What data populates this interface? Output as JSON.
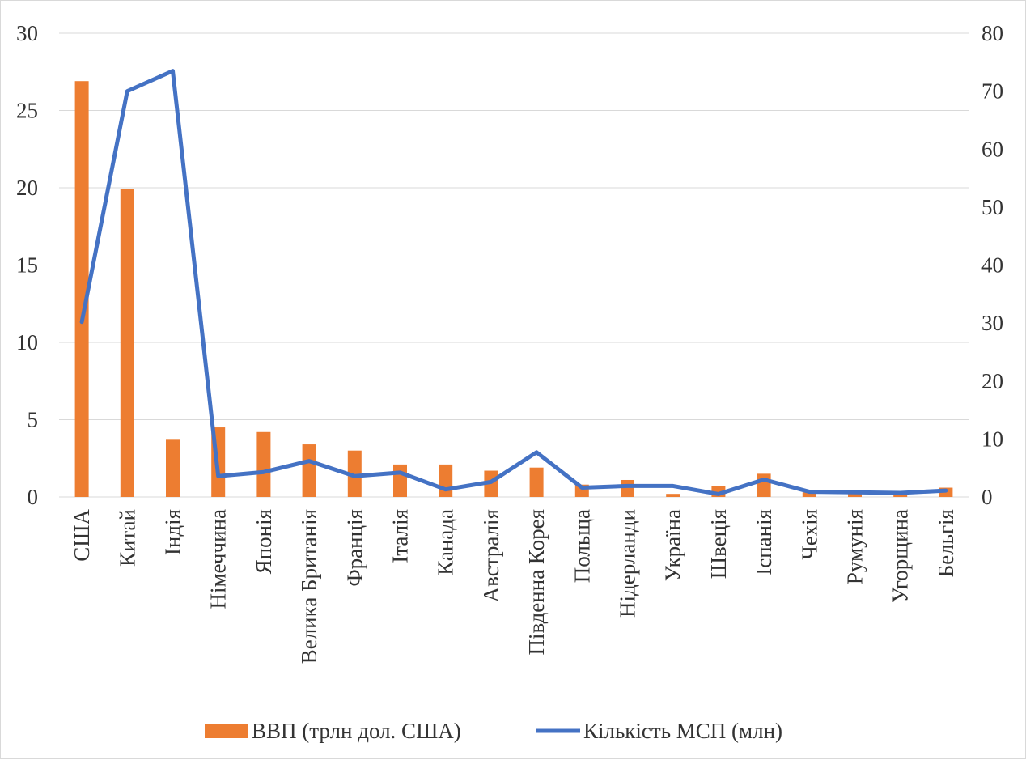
{
  "chart_data": {
    "type": "bar",
    "categories": [
      "США",
      "Китай",
      "Індія",
      "Німеччина",
      "Японія",
      "Велика Британія",
      "Франція",
      "Італія",
      "Канада",
      "Австралія",
      "Південна Корея",
      "Польща",
      "Нідерланди",
      "Україна",
      "Швеція",
      "Іспанія",
      "Чехія",
      "Румунія",
      "Угорщина",
      "Бельгія"
    ],
    "series": [
      {
        "name": "ВВП (трлн дол. США)",
        "type": "bar",
        "axis": "left",
        "color": "#ED7D31",
        "values": [
          26.9,
          19.9,
          3.7,
          4.5,
          4.2,
          3.4,
          3.0,
          2.1,
          2.1,
          1.7,
          1.9,
          0.8,
          1.1,
          0.2,
          0.7,
          1.5,
          0.3,
          0.3,
          0.2,
          0.6
        ]
      },
      {
        "name": "Кількість МСП (млн)",
        "type": "line",
        "axis": "right",
        "color": "#4472C4",
        "values": [
          30.2,
          70.0,
          73.5,
          3.6,
          4.3,
          6.2,
          3.6,
          4.2,
          1.3,
          2.6,
          7.7,
          1.6,
          1.9,
          1.9,
          0.5,
          3.0,
          0.9,
          0.8,
          0.7,
          1.1
        ]
      }
    ],
    "y_left": {
      "min": 0,
      "max": 30,
      "ticks": [
        0,
        5,
        10,
        15,
        20,
        25,
        30
      ]
    },
    "y_right": {
      "min": 0,
      "max": 80,
      "ticks": [
        0,
        10,
        20,
        30,
        40,
        50,
        60,
        70,
        80
      ]
    },
    "title": "",
    "xlabel": "",
    "ylabel": "",
    "grid": true,
    "legend": "bottom"
  }
}
